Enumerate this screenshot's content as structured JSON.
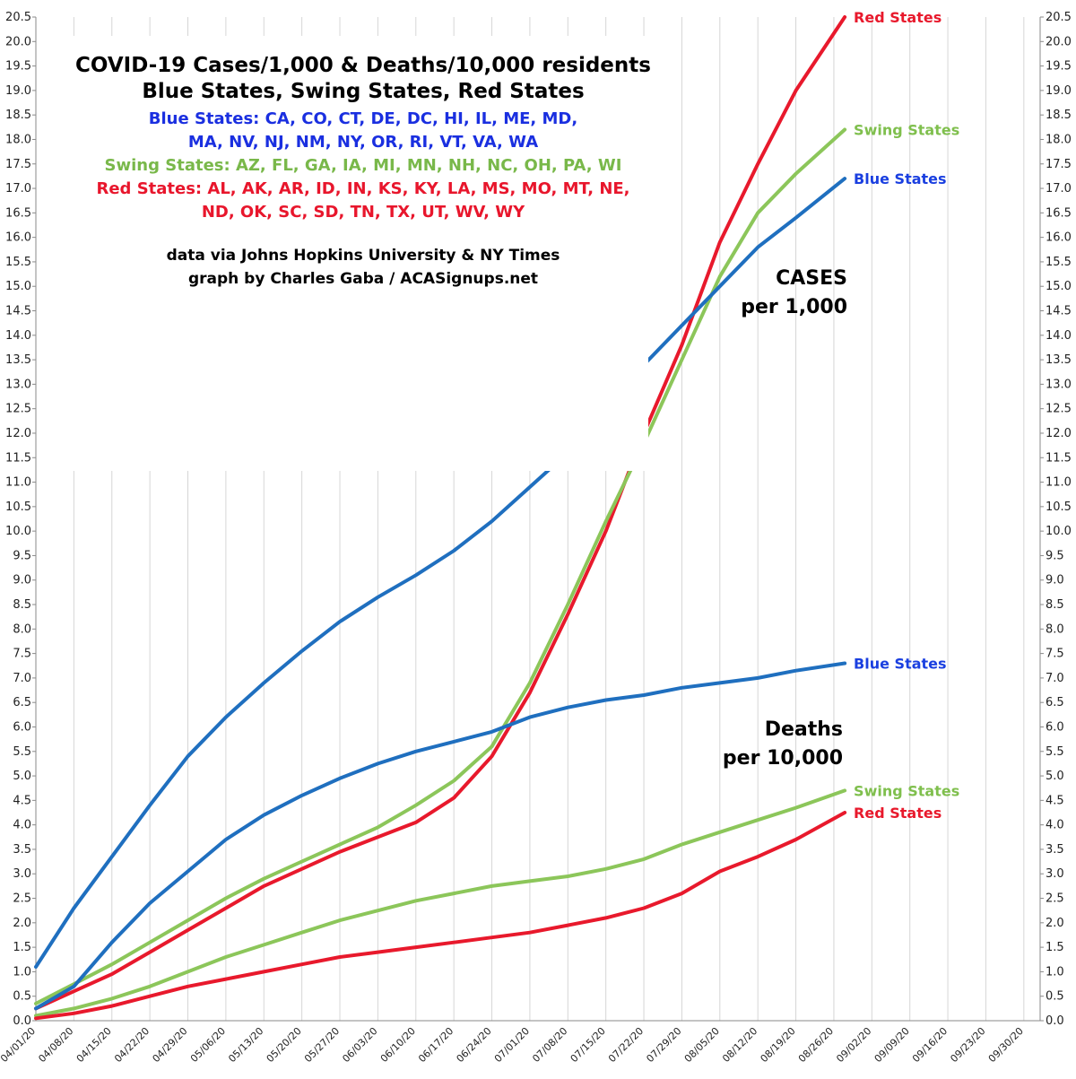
{
  "chart_data": {
    "type": "line",
    "title": "COVID-19 Cases/1,000 & Deaths/10,000 residents",
    "subtitle": "Blue States, Swing States, Red States",
    "group_lines": [
      {
        "text": "Blue States: CA, CO, CT, DE, DC, HI, IL, ME, MD,",
        "color": "#1a2fe0"
      },
      {
        "text": "MA, NV, NJ, NM, NY, OR, RI, VT, VA, WA",
        "color": "#1a2fe0"
      },
      {
        "text": "Swing States: AZ, FL, GA, IA, MI, MN, NH, NC, OH, PA, WI",
        "color": "#79b84a"
      },
      {
        "text": "Red States: AL, AK, AR, ID, IN, KS, KY, LA, MS, MO, MT, NE,",
        "color": "#e8162c"
      },
      {
        "text": "ND, OK, SC, SD, TN, TX, UT, WV, WY",
        "color": "#e8162c"
      }
    ],
    "credit_lines": [
      "data via Johns Hopkins University & NY Times",
      "graph by Charles Gaba / ACASignups.net"
    ],
    "annotations": {
      "cases": [
        "CASES",
        "per 1,000"
      ],
      "deaths": [
        "Deaths",
        "per 10,000"
      ]
    },
    "x_tick_labels": [
      "04/01/20",
      "04/08/20",
      "04/15/20",
      "04/22/20",
      "04/29/20",
      "05/06/20",
      "05/13/20",
      "05/20/20",
      "05/27/20",
      "06/03/20",
      "06/10/20",
      "06/17/20",
      "06/24/20",
      "07/01/20",
      "07/08/20",
      "07/15/20",
      "07/22/20",
      "07/29/20",
      "08/05/20",
      "08/12/20",
      "08/19/20",
      "08/26/20",
      "09/02/20",
      "09/09/20",
      "09/16/20",
      "09/23/20",
      "09/30/20"
    ],
    "x_range": [
      "04/01/20",
      "10/03/20"
    ],
    "ylim": [
      0,
      20.5
    ],
    "y_tick_step": 0.5,
    "y_tick_labels": [
      "0.0",
      "0.5",
      "1.0",
      "1.5",
      "2.0",
      "2.5",
      "3.0",
      "3.5",
      "4.0",
      "4.5",
      "5.0",
      "5.5",
      "6.0",
      "6.5",
      "7.0",
      "7.5",
      "8.0",
      "8.5",
      "9.0",
      "9.5",
      "10.0",
      "10.5",
      "11.0",
      "11.5",
      "12.0",
      "12.5",
      "13.0",
      "13.5",
      "14.0",
      "14.5",
      "15.0",
      "15.5",
      "16.0",
      "16.5",
      "17.0",
      "17.5",
      "18.0",
      "18.5",
      "19.0",
      "19.5",
      "20.0",
      "20.5"
    ],
    "grid": "vertical lines at each x tick",
    "colors": {
      "blue": "#1f6fbf",
      "swing": "#8cc65a",
      "red": "#e8192c",
      "blue_label": "#1a3fe0",
      "swing_label": "#7fbf4d",
      "red_label": "#e8192c"
    },
    "series": [
      {
        "name": "Red States",
        "metric": "cases",
        "color_key": "red",
        "points": [
          [
            "04/01/20",
            0.25
          ],
          [
            "04/08/20",
            0.6
          ],
          [
            "04/15/20",
            0.95
          ],
          [
            "04/22/20",
            1.4
          ],
          [
            "04/29/20",
            1.85
          ],
          [
            "05/06/20",
            2.3
          ],
          [
            "05/13/20",
            2.75
          ],
          [
            "05/20/20",
            3.1
          ],
          [
            "05/27/20",
            3.45
          ],
          [
            "06/03/20",
            3.75
          ],
          [
            "06/10/20",
            4.05
          ],
          [
            "06/17/20",
            4.55
          ],
          [
            "06/24/20",
            5.4
          ],
          [
            "07/01/20",
            6.7
          ],
          [
            "07/08/20",
            8.3
          ],
          [
            "07/15/20",
            10.0
          ],
          [
            "07/22/20",
            12.0
          ],
          [
            "07/29/20",
            13.8
          ],
          [
            "08/05/20",
            15.9
          ],
          [
            "08/12/20",
            17.5
          ],
          [
            "08/19/20",
            19.0
          ],
          [
            "08/28/20",
            20.5
          ]
        ]
      },
      {
        "name": "Swing States",
        "metric": "cases",
        "color_key": "swing",
        "points": [
          [
            "04/01/20",
            0.35
          ],
          [
            "04/08/20",
            0.75
          ],
          [
            "04/15/20",
            1.15
          ],
          [
            "04/22/20",
            1.6
          ],
          [
            "04/29/20",
            2.05
          ],
          [
            "05/06/20",
            2.5
          ],
          [
            "05/13/20",
            2.9
          ],
          [
            "05/20/20",
            3.25
          ],
          [
            "05/27/20",
            3.6
          ],
          [
            "06/03/20",
            3.95
          ],
          [
            "06/10/20",
            4.4
          ],
          [
            "06/17/20",
            4.9
          ],
          [
            "06/24/20",
            5.6
          ],
          [
            "07/01/20",
            6.9
          ],
          [
            "07/08/20",
            8.5
          ],
          [
            "07/15/20",
            10.2
          ],
          [
            "07/22/20",
            11.8
          ],
          [
            "07/29/20",
            13.5
          ],
          [
            "08/05/20",
            15.2
          ],
          [
            "08/12/20",
            16.5
          ],
          [
            "08/19/20",
            17.3
          ],
          [
            "08/28/20",
            18.2
          ]
        ]
      },
      {
        "name": "Blue States",
        "metric": "cases",
        "color_key": "blue",
        "points": [
          [
            "04/01/20",
            1.1
          ],
          [
            "04/08/20",
            2.3
          ],
          [
            "04/15/20",
            3.35
          ],
          [
            "04/22/20",
            4.4
          ],
          [
            "04/29/20",
            5.4
          ],
          [
            "05/06/20",
            6.2
          ],
          [
            "05/13/20",
            6.9
          ],
          [
            "05/20/20",
            7.55
          ],
          [
            "05/27/20",
            8.15
          ],
          [
            "06/03/20",
            8.65
          ],
          [
            "06/10/20",
            9.1
          ],
          [
            "06/17/20",
            9.6
          ],
          [
            "06/24/20",
            10.2
          ],
          [
            "07/01/20",
            10.9
          ],
          [
            "07/08/20",
            11.6
          ],
          [
            "07/15/20",
            12.3
          ],
          [
            "07/22/20",
            13.4
          ],
          [
            "07/29/20",
            14.2
          ],
          [
            "08/05/20",
            15.0
          ],
          [
            "08/12/20",
            15.8
          ],
          [
            "08/19/20",
            16.4
          ],
          [
            "08/28/20",
            17.2
          ]
        ]
      },
      {
        "name": "Blue States",
        "metric": "deaths",
        "color_key": "blue",
        "points": [
          [
            "04/01/20",
            0.25
          ],
          [
            "04/08/20",
            0.7
          ],
          [
            "04/15/20",
            1.6
          ],
          [
            "04/22/20",
            2.4
          ],
          [
            "04/29/20",
            3.05
          ],
          [
            "05/06/20",
            3.7
          ],
          [
            "05/13/20",
            4.2
          ],
          [
            "05/20/20",
            4.6
          ],
          [
            "05/27/20",
            4.95
          ],
          [
            "06/03/20",
            5.25
          ],
          [
            "06/10/20",
            5.5
          ],
          [
            "06/17/20",
            5.7
          ],
          [
            "06/24/20",
            5.9
          ],
          [
            "07/01/20",
            6.2
          ],
          [
            "07/08/20",
            6.4
          ],
          [
            "07/15/20",
            6.55
          ],
          [
            "07/22/20",
            6.65
          ],
          [
            "07/29/20",
            6.8
          ],
          [
            "08/05/20",
            6.9
          ],
          [
            "08/12/20",
            7.0
          ],
          [
            "08/19/20",
            7.15
          ],
          [
            "08/28/20",
            7.3
          ]
        ]
      },
      {
        "name": "Swing States",
        "metric": "deaths",
        "color_key": "swing",
        "points": [
          [
            "04/01/20",
            0.1
          ],
          [
            "04/08/20",
            0.25
          ],
          [
            "04/15/20",
            0.45
          ],
          [
            "04/22/20",
            0.7
          ],
          [
            "04/29/20",
            1.0
          ],
          [
            "05/06/20",
            1.3
          ],
          [
            "05/13/20",
            1.55
          ],
          [
            "05/20/20",
            1.8
          ],
          [
            "05/27/20",
            2.05
          ],
          [
            "06/03/20",
            2.25
          ],
          [
            "06/10/20",
            2.45
          ],
          [
            "06/17/20",
            2.6
          ],
          [
            "06/24/20",
            2.75
          ],
          [
            "07/01/20",
            2.85
          ],
          [
            "07/08/20",
            2.95
          ],
          [
            "07/15/20",
            3.1
          ],
          [
            "07/22/20",
            3.3
          ],
          [
            "07/29/20",
            3.6
          ],
          [
            "08/05/20",
            3.85
          ],
          [
            "08/12/20",
            4.1
          ],
          [
            "08/19/20",
            4.35
          ],
          [
            "08/28/20",
            4.7
          ]
        ]
      },
      {
        "name": "Red States",
        "metric": "deaths",
        "color_key": "red",
        "points": [
          [
            "04/01/20",
            0.05
          ],
          [
            "04/08/20",
            0.15
          ],
          [
            "04/15/20",
            0.3
          ],
          [
            "04/22/20",
            0.5
          ],
          [
            "04/29/20",
            0.7
          ],
          [
            "05/06/20",
            0.85
          ],
          [
            "05/13/20",
            1.0
          ],
          [
            "05/20/20",
            1.15
          ],
          [
            "05/27/20",
            1.3
          ],
          [
            "06/03/20",
            1.4
          ],
          [
            "06/10/20",
            1.5
          ],
          [
            "06/17/20",
            1.6
          ],
          [
            "06/24/20",
            1.7
          ],
          [
            "07/01/20",
            1.8
          ],
          [
            "07/08/20",
            1.95
          ],
          [
            "07/15/20",
            2.1
          ],
          [
            "07/22/20",
            2.3
          ],
          [
            "07/29/20",
            2.6
          ],
          [
            "08/05/20",
            3.05
          ],
          [
            "08/12/20",
            3.35
          ],
          [
            "08/19/20",
            3.7
          ],
          [
            "08/28/20",
            4.25
          ]
        ]
      }
    ]
  }
}
